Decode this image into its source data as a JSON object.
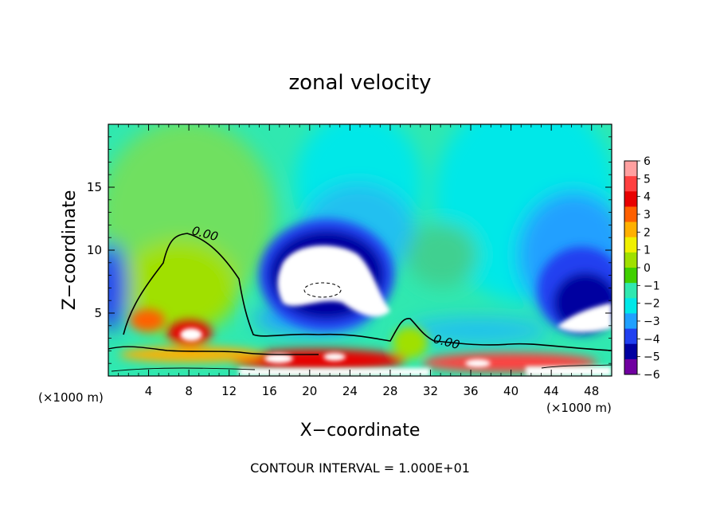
{
  "chart_data": {
    "type": "heatmap",
    "title": "zonal velocity",
    "xlabel": "X−coordinate",
    "ylabel": "Z−coordinate",
    "x_unit_label": "(×1000 m)",
    "x_unit_label_right": "(×1000 m)",
    "xlim": [
      0,
      50
    ],
    "ylim": [
      0,
      20
    ],
    "x_ticks": [
      4,
      8,
      12,
      16,
      20,
      24,
      28,
      32,
      36,
      40,
      44,
      48
    ],
    "y_ticks": [
      5,
      10,
      15
    ],
    "colorbar": {
      "levels": [
        6,
        5,
        4,
        3,
        2,
        1,
        0,
        -1,
        -2,
        -3,
        -4,
        -5,
        -6
      ],
      "level_labels": [
        "6",
        "5",
        "4",
        "3",
        "2",
        "1",
        "0",
        "−1",
        "−2",
        "−3",
        "−4",
        "−5",
        "−6"
      ],
      "colors": [
        "#ffa0a0",
        "#ff4040",
        "#e80000",
        "#ff6000",
        "#ffb000",
        "#f0f000",
        "#a0e000",
        "#40d000",
        "#30e8b0",
        "#00e8e8",
        "#20a0ff",
        "#2040f0",
        "#0000a0",
        "#7000a0"
      ]
    },
    "contour_interval_label": "CONTOUR INTERVAL = 1.000E+01",
    "contour_labels": [
      {
        "text": "0.00",
        "x": 9.5,
        "z": 11
      },
      {
        "text": "0.00",
        "x": 33.5,
        "z": 2.4
      }
    ]
  }
}
